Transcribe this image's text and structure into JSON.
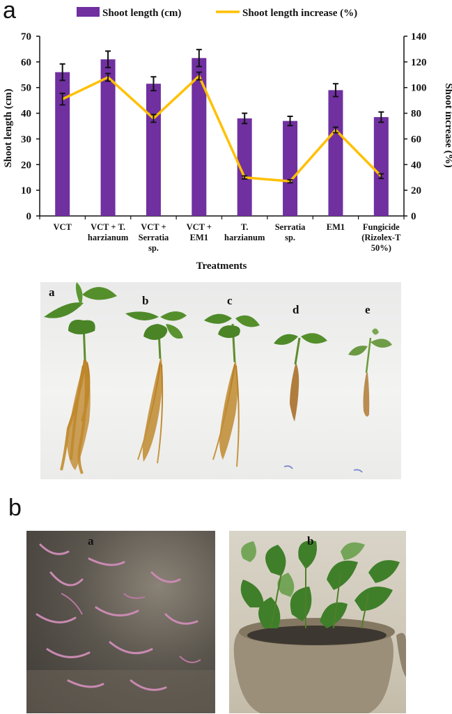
{
  "panels": {
    "a": "a",
    "b": "b"
  },
  "chart_data": {
    "type": "bar",
    "categories": [
      [
        "VCT"
      ],
      [
        "VCT + T.",
        "harzianum"
      ],
      [
        "VCT +",
        "Serratia",
        "sp."
      ],
      [
        "VCT +",
        "EM1"
      ],
      [
        "T.",
        "harzianum"
      ],
      [
        "Serratia",
        "sp."
      ],
      [
        "EM1"
      ],
      [
        "Fungicide",
        "(Rizolex-T",
        "50%)"
      ]
    ],
    "series": [
      {
        "name": "Shoot length (cm)",
        "type": "bar",
        "axis": "left",
        "color": "#7030A0",
        "values": [
          56,
          61,
          51.5,
          61.5,
          38,
          37,
          49,
          38.5
        ],
        "errors": [
          3.2,
          3.2,
          2.7,
          3.3,
          2.0,
          1.8,
          2.5,
          2.0
        ]
      },
      {
        "name": "Shoot length increase (%)",
        "type": "line",
        "axis": "right",
        "color": "#FFC000",
        "values": [
          91,
          108,
          76,
          109,
          30,
          27,
          67,
          31
        ],
        "errors": [
          4.5,
          3,
          3,
          3,
          1.2,
          1.2,
          2.2,
          1.8
        ]
      }
    ],
    "xlabel": "Treatments",
    "ylabel": "Shoot length (cm)",
    "y2label": "Shoot increase (%)",
    "ylim": [
      0,
      70
    ],
    "y2lim": [
      0,
      140
    ],
    "yticks": [
      0,
      10,
      20,
      30,
      40,
      50,
      60,
      70
    ],
    "y2ticks": [
      0,
      20,
      40,
      60,
      80,
      100,
      120,
      140
    ],
    "legend": "top"
  },
  "photo_a": {
    "labels": [
      "a",
      "b",
      "c",
      "d",
      "e"
    ]
  },
  "photo_b": {
    "left_label": "a",
    "right_label": "b"
  }
}
